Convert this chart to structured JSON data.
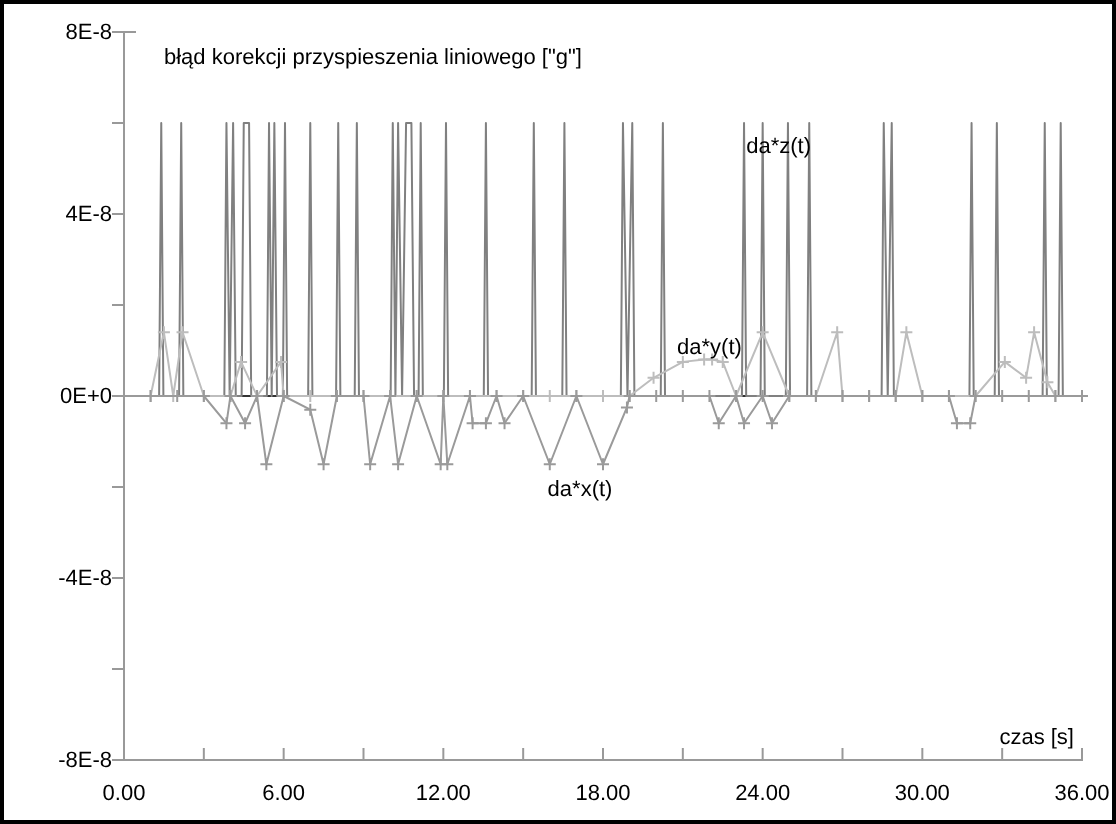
{
  "chart_data": {
    "type": "line",
    "ylabel": "błąd korekcji przyspieszenia liniowego [\"g\"]",
    "xlabel": "czas [s]",
    "xlim": [
      0,
      36
    ],
    "xticks": [
      {
        "value": 0,
        "label": "0.00"
      },
      {
        "value": 3,
        "label": null
      },
      {
        "value": 6,
        "label": "6.00"
      },
      {
        "value": 9,
        "label": null
      },
      {
        "value": 12,
        "label": "12.00"
      },
      {
        "value": 15,
        "label": null
      },
      {
        "value": 18,
        "label": "18.00"
      },
      {
        "value": 21,
        "label": null
      },
      {
        "value": 24,
        "label": "24.00"
      },
      {
        "value": 27,
        "label": null
      },
      {
        "value": 30,
        "label": "30.00"
      },
      {
        "value": 33,
        "label": null
      },
      {
        "value": 36,
        "label": "36.00"
      }
    ],
    "ylim": [
      -8e-08,
      8e-08
    ],
    "yticks": [
      {
        "value": -8e-08,
        "label": "-8E-8"
      },
      {
        "value": -6e-08,
        "label": null
      },
      {
        "value": -4e-08,
        "label": "-4E-8"
      },
      {
        "value": -2e-08,
        "label": null
      },
      {
        "value": 0,
        "label": "0E+0"
      },
      {
        "value": 2e-08,
        "label": null
      },
      {
        "value": 4e-08,
        "label": "4E-8"
      },
      {
        "value": 6e-08,
        "label": null
      },
      {
        "value": 8e-08,
        "label": "8E-8"
      }
    ],
    "grid": false,
    "line_style": "solid",
    "ref_lines": [
      {
        "axis": "y",
        "value": 0,
        "color": "#333333"
      }
    ],
    "annotations": [
      {
        "text": "da*z(t)",
        "x": 24.6,
        "y": 5.5e-08
      },
      {
        "text": "da*y(t)",
        "x": 22.0,
        "y": 1.1e-08
      },
      "da*x(t)"
    ],
    "series": [
      {
        "color": "#808080",
        "marker": "none",
        "x": [
          0,
          1.32,
          1.4,
          1.48,
          2.07,
          2.15,
          2.23,
          3.77,
          3.85,
          3.97,
          4.1,
          4.2,
          4.42,
          4.5,
          4.7,
          4.78,
          5.37,
          5.45,
          5.55,
          5.65,
          5.75,
          5.97,
          6.05,
          6.13,
          6.92,
          7.0,
          7.08,
          7.97,
          8.05,
          8.13,
          8.67,
          8.75,
          8.83,
          10.02,
          10.1,
          10.2,
          10.3,
          10.45,
          10.6,
          10.8,
          10.9,
          11.07,
          11.15,
          11.23,
          12.02,
          12.1,
          12.18,
          13.52,
          13.6,
          13.68,
          15.32,
          15.4,
          15.48,
          16.47,
          16.55,
          16.63,
          18.67,
          18.75,
          18.92,
          19.1,
          19.18,
          20.17,
          20.25,
          20.33,
          23.22,
          23.3,
          23.38,
          23.92,
          24.0,
          24.08,
          24.87,
          24.95,
          25.03,
          25.67,
          25.75,
          25.83,
          28.47,
          28.55,
          28.7,
          28.85,
          28.93,
          31.77,
          31.85,
          31.93,
          32.72,
          32.8,
          32.88,
          34.52,
          34.6,
          34.68,
          35.12,
          35.2,
          35.28,
          36
        ],
        "values": [
          0,
          0,
          6e-08,
          0,
          0,
          6e-08,
          0,
          0,
          6e-08,
          0,
          6e-08,
          0,
          0,
          6e-08,
          6e-08,
          0,
          0,
          6e-08,
          0,
          6e-08,
          0,
          0,
          6e-08,
          0,
          0,
          6e-08,
          0,
          0,
          6e-08,
          0,
          0,
          6e-08,
          0,
          0,
          6e-08,
          0,
          6e-08,
          0,
          6e-08,
          6e-08,
          0,
          0,
          6e-08,
          0,
          0,
          6e-08,
          0,
          0,
          6e-08,
          0,
          0,
          6e-08,
          0,
          0,
          6e-08,
          0,
          0,
          6e-08,
          0,
          6e-08,
          0,
          0,
          6e-08,
          0,
          0,
          6e-08,
          0,
          0,
          6e-08,
          0,
          0,
          6e-08,
          0,
          0,
          6e-08,
          0,
          0,
          6e-08,
          0,
          6e-08,
          0,
          0,
          6e-08,
          0,
          0,
          6e-08,
          0,
          0,
          6e-08,
          0,
          0,
          6e-08,
          0,
          0
        ]
      },
      {
        "color": "#bdbdbd",
        "marker": "cross",
        "x": [
          0,
          1,
          1.5,
          1.85,
          2.2,
          3,
          4,
          4.4,
          5,
          5.9,
          6,
          7,
          8,
          9,
          10,
          11,
          12,
          13,
          14,
          15,
          16,
          17,
          18,
          19,
          19.9,
          21,
          21.8,
          22.1,
          22.5,
          23,
          24,
          25,
          26,
          26.8,
          27,
          28,
          29,
          29.4,
          30,
          31,
          32,
          33.1,
          33.9,
          34.2,
          34.7,
          35,
          36
        ],
        "values": [
          0,
          0,
          1.4e-08,
          0,
          1.4e-08,
          0,
          0,
          7.5e-09,
          0,
          7.5e-09,
          0,
          0,
          0,
          0,
          0,
          0,
          0,
          0,
          0,
          0,
          0,
          0,
          0,
          0,
          4e-09,
          7.5e-09,
          8e-09,
          8e-09,
          7.5e-09,
          0,
          1.4e-08,
          0,
          0,
          1.4e-08,
          0,
          0,
          0,
          1.4e-08,
          0,
          0,
          0,
          7.5e-09,
          4e-09,
          1.4e-08,
          3e-09,
          0,
          0
        ]
      },
      {
        "color": "#9a9a9a",
        "marker": "cross",
        "x": [
          0,
          1,
          2,
          3,
          3.85,
          4,
          4.55,
          5,
          5.35,
          6,
          7,
          7.5,
          8,
          9,
          9.25,
          10,
          10.3,
          11,
          11.9,
          12,
          12.15,
          13,
          13.1,
          13.6,
          14,
          14.3,
          15,
          16,
          17,
          18,
          18.9,
          19,
          20,
          21,
          22,
          22.35,
          23,
          23.3,
          24,
          24.35,
          25,
          26,
          27,
          28,
          29,
          30,
          31,
          31.3,
          31.8,
          32,
          33,
          34,
          35,
          36
        ],
        "values": [
          0,
          0,
          0,
          0,
          -6e-09,
          0,
          -6e-09,
          0,
          -1.5e-08,
          0,
          -3e-09,
          -1.5e-08,
          0,
          0,
          -1.5e-08,
          0,
          -1.5e-08,
          0,
          -1.5e-08,
          0,
          -1.5e-08,
          0,
          -6e-09,
          -6e-09,
          0,
          -6e-09,
          0,
          -1.5e-08,
          0,
          -1.5e-08,
          -2.5e-09,
          0,
          0,
          0,
          0,
          -6e-09,
          0,
          -6e-09,
          0,
          -6e-09,
          0,
          0,
          0,
          0,
          0,
          0,
          0,
          -6e-09,
          -6e-09,
          0,
          0,
          0,
          0,
          0
        ]
      }
    ]
  }
}
